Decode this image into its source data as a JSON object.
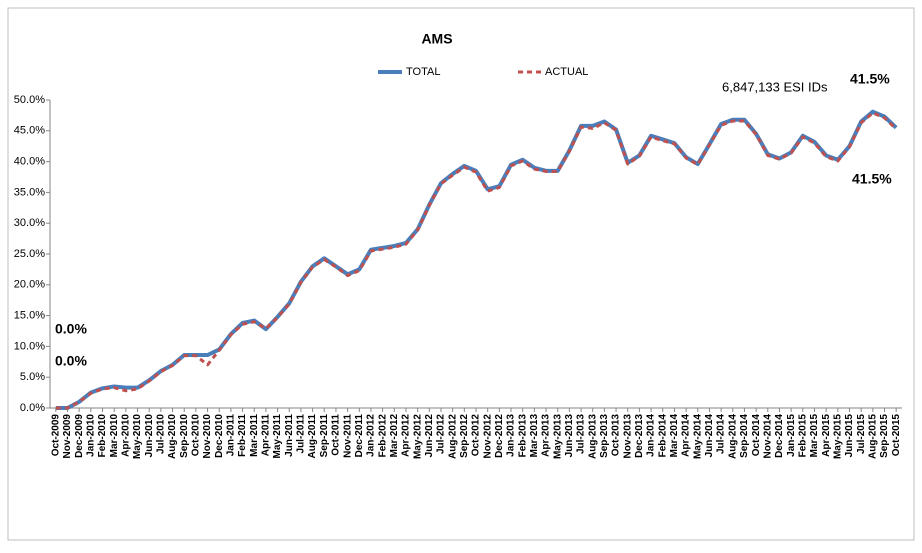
{
  "chart_data": {
    "type": "line",
    "title": "AMS",
    "categories": [
      "Oct-2009",
      "Nov-2009",
      "Dec-2009",
      "Jan-2010",
      "Feb-2010",
      "Mar-2010",
      "Apr-2010",
      "May-2010",
      "Jun-2010",
      "Jul-2010",
      "Aug-2010",
      "Sep-2010",
      "Oct-2010",
      "Nov-2010",
      "Dec-2010",
      "Jan-2011",
      "Feb-2011",
      "Mar-2011",
      "Apr-2011",
      "May-2011",
      "Jun-2011",
      "Jul-2011",
      "Aug-2011",
      "Sep-2011",
      "Oct-2011",
      "Nov-2011",
      "Dec-2011",
      "Jan-2012",
      "Feb-2012",
      "Mar-2012",
      "Apr-2012",
      "May-2012",
      "Jun-2012",
      "Jul-2012",
      "Aug-2012",
      "Sep-2012",
      "Oct-2012",
      "Nov-2012",
      "Dec-2012",
      "Jan-2013",
      "Feb-2013",
      "Mar-2013",
      "Apr-2013",
      "May-2013",
      "Jun-2013",
      "Jul-2013",
      "Aug-2013",
      "Sep-2013",
      "Oct-2013",
      "Nov-2013",
      "Dec-2013",
      "Jan-2014",
      "Feb-2014",
      "Mar-2014",
      "Apr-2014",
      "May-2014",
      "Jun-2014",
      "Jul-2014",
      "Aug-2014",
      "Sep-2014",
      "Oct-2014",
      "Nov-2014",
      "Dec-2014",
      "Jan-2015",
      "Feb-2015",
      "Mar-2015",
      "Apr-2015",
      "May-2015",
      "Jun-2015",
      "Jul-2015",
      "Aug-2015",
      "Sep-2015",
      "Oct-2015"
    ],
    "series": [
      {
        "name": "TOTAL",
        "color": "#4a7ebb",
        "values": [
          0,
          0,
          1,
          2.5,
          3.2,
          3.5,
          3.3,
          3.3,
          4.5,
          6,
          7,
          8.6,
          8.6,
          8.6,
          9.5,
          12,
          13.8,
          14.2,
          12.8,
          14.8,
          17,
          20.5,
          23,
          24.3,
          23,
          21.7,
          22.5,
          25.7,
          26,
          26.3,
          26.8,
          29,
          33,
          36.5,
          38,
          39.3,
          38.5,
          35.5,
          36,
          39.5,
          40.3,
          39,
          38.5,
          38.5,
          41.8,
          45.8,
          45.8,
          46.5,
          45.2,
          39.8,
          41,
          44.2,
          43.6,
          43,
          40.7,
          39.6,
          42.8,
          46.1,
          46.8,
          46.8,
          44.5,
          41.2,
          40.5,
          41.5,
          44.2,
          43.2,
          41,
          40.3,
          42.5,
          46.5,
          48.1,
          47.3,
          45.5
        ]
      },
      {
        "name": "ACTUAL",
        "color": "#c0504d",
        "values": [
          0,
          0,
          1,
          2.4,
          3.1,
          3.3,
          2.8,
          3.1,
          4.4,
          5.9,
          6.9,
          8.5,
          8.5,
          7,
          9.4,
          11.9,
          13.6,
          14,
          12.9,
          14.7,
          16.9,
          20.4,
          22.9,
          24.1,
          22.9,
          21.5,
          22.3,
          25.5,
          25.8,
          26.1,
          26.6,
          28.9,
          32.9,
          36.4,
          37.8,
          39.1,
          38.3,
          35.2,
          35.8,
          39.3,
          40.1,
          38.8,
          38.4,
          38.4,
          41.7,
          45.6,
          45.4,
          46.3,
          45.1,
          39.6,
          40.9,
          44,
          43.4,
          42.9,
          40.6,
          39.5,
          42.7,
          45.9,
          46.6,
          46.6,
          44.4,
          41,
          40.4,
          41.4,
          44,
          43,
          40.8,
          40.1,
          42.4,
          46.3,
          47.9,
          47.1,
          45.3
        ]
      }
    ],
    "ylim": [
      0,
      50
    ],
    "yticks": [
      {
        "value": 0,
        "label": "0.0%"
      },
      {
        "value": 5,
        "label": "5.0%"
      },
      {
        "value": 10,
        "label": "10.0%"
      },
      {
        "value": 15,
        "label": "15.0%"
      },
      {
        "value": 20,
        "label": "20.0%"
      },
      {
        "value": 25,
        "label": "25.0%"
      },
      {
        "value": 30,
        "label": "30.0%"
      },
      {
        "value": 35,
        "label": "35.0%"
      },
      {
        "value": 40,
        "label": "40.0%"
      },
      {
        "value": 45,
        "label": "45.0%"
      },
      {
        "value": 50,
        "label": "50.0%"
      }
    ],
    "grid": false,
    "annotations": [
      {
        "text": "0.0%",
        "color": "#2e75b6"
      },
      {
        "text": "0.0%",
        "color": "#c00000"
      },
      {
        "text": "41.5%",
        "color": "#2e75b6"
      },
      {
        "text": "41.5%",
        "color": "#c00000"
      },
      {
        "text": "6,847,133 ESI IDs",
        "color": "#000000"
      }
    ]
  }
}
